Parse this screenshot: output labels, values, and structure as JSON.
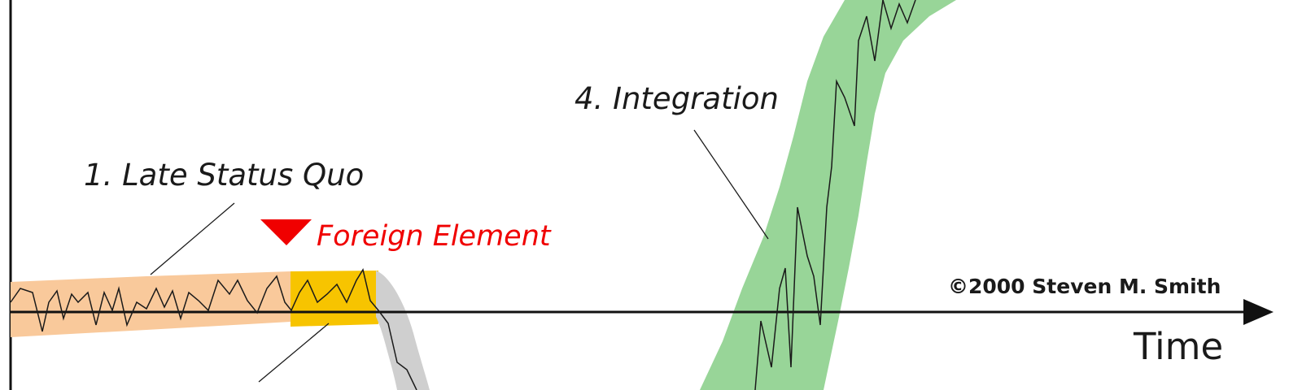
{
  "labels": {
    "status_quo": "1. Late Status Quo",
    "foreign_element": "Foreign Element",
    "integration": "4. Integration",
    "credit": "©2000 Steven M. Smith",
    "x_axis": "Time"
  },
  "colors": {
    "status_quo_band": "#f9c99b",
    "foreign_element_band": "#f7c400",
    "chaos_band": "#cfcfcf",
    "integration_band": "#98d598",
    "marker": "#f00000",
    "axis": "#111111"
  }
}
